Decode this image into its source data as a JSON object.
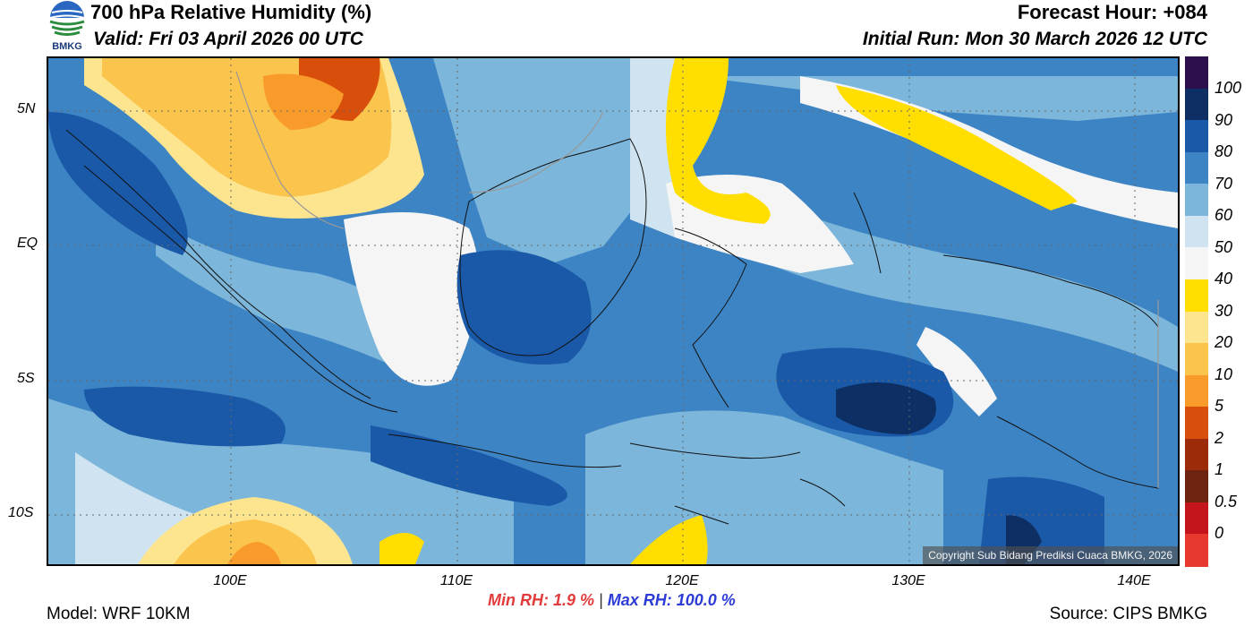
{
  "header": {
    "title": "700 hPa Relative Humidity (%)",
    "valid": "Valid: Fri 03 April 2026 00 UTC",
    "forecast_hour": "Forecast Hour: +084",
    "initial_run": "Initial Run: Mon 30 March 2026 12 UTC",
    "logo_text": "BMKG"
  },
  "map": {
    "copyright": "Copyright Sub Bidang Prediksi Cuaca BMKG, 2026",
    "lat_labels": [
      "5N",
      "EQ",
      "5S",
      "10S"
    ],
    "lon_labels": [
      "100E",
      "110E",
      "120E",
      "130E",
      "140E"
    ]
  },
  "colorbar": {
    "labels": [
      "100",
      "90",
      "80",
      "70",
      "60",
      "50",
      "40",
      "30",
      "20",
      "10",
      "5",
      "2",
      "1",
      "0.5",
      "0"
    ],
    "colors": [
      "#2e0f4e",
      "#0d2f63",
      "#1a59a8",
      "#3d84c4",
      "#7cb6da",
      "#cfe3f0",
      "#f5f5f5",
      "#ffde00",
      "#fde590",
      "#fbc44c",
      "#f89b2a",
      "#d84f0c",
      "#9c2b09",
      "#6e2210",
      "#c4141c",
      "#e8392e"
    ]
  },
  "footer": {
    "min_rh": "Min RH:   1.9 %",
    "separator": "|",
    "max_rh": "Max RH: 100.0 %",
    "model": "Model: WRF 10KM",
    "source": "Source: CIPS BMKG"
  }
}
